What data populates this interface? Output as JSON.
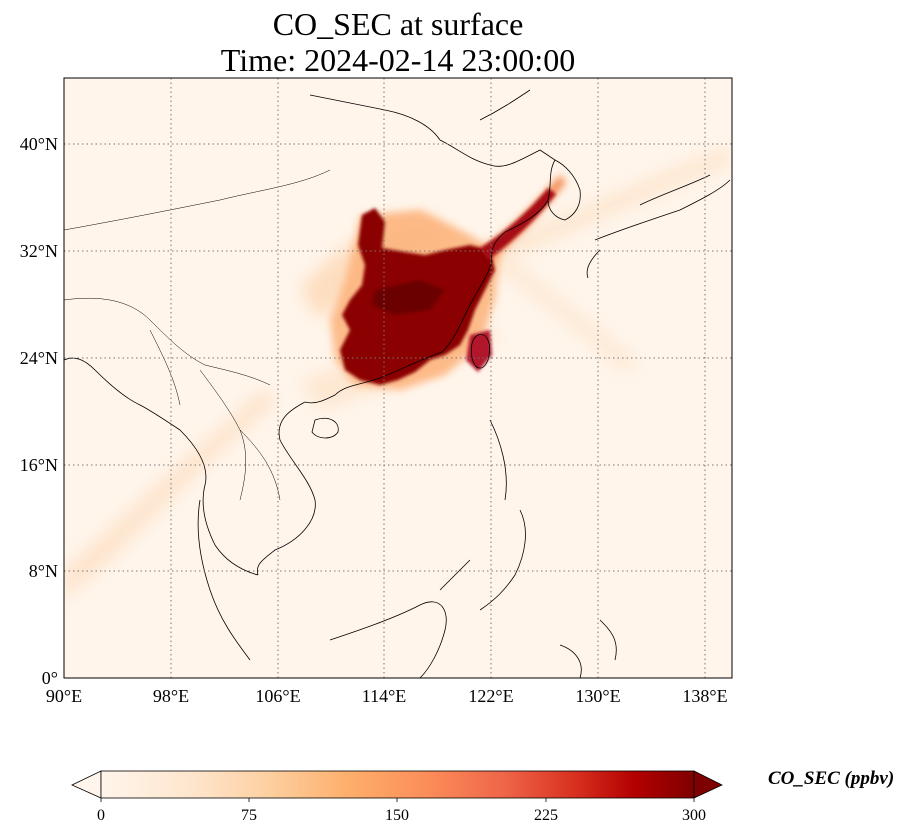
{
  "title": {
    "line1": "CO_SEC at surface",
    "line2": "Time: 2024-02-14 23:00:00"
  },
  "map": {
    "lon_range": [
      90,
      140
    ],
    "lat_range": [
      0,
      45
    ],
    "gridlines": true,
    "lon_ticks": [
      "90°E",
      "98°E",
      "106°E",
      "114°E",
      "122°E",
      "130°E",
      "138°E"
    ],
    "lat_ticks": [
      "0°",
      "8°N",
      "16°N",
      "24°N",
      "32°N",
      "40°N"
    ]
  },
  "colorbar": {
    "label": "CO_SEC (ppbv)",
    "min": 0,
    "max": 300,
    "ticks": [
      "0",
      "75",
      "150",
      "225",
      "300"
    ],
    "extend": "both",
    "colors": [
      "#fff5eb",
      "#fee6ce",
      "#fdd0a2",
      "#fdae6b",
      "#fd8d3c",
      "#f16913",
      "#d94801",
      "#a63603",
      "#7f0000"
    ]
  }
}
